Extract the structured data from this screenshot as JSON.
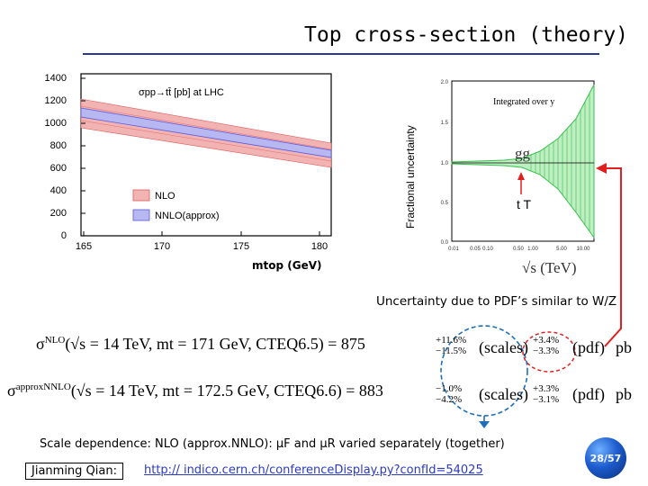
{
  "slide": {
    "title": "Top cross-section (theory)",
    "page_badge": "28/57",
    "uncertainty_note": "Uncertainty due to PDF’s similar to W/Z",
    "scale_note": "Scale dependence: NLO (approx.NNLO): μF and μR varied separately (together)",
    "author": "Jianming Qian:",
    "link": "http:// indico.cern.ch/conferenceDisplay.py?confId=54025"
  },
  "left_plot": {
    "legend_title": "σpp→tt̄ [pb] at LHC",
    "legend_nlo": "NLO",
    "legend_nnlo": "NNLO(approx)",
    "x_ticks": [
      "165",
      "170",
      "175",
      "180"
    ],
    "y_ticks": [
      "1400",
      "1200",
      "1000",
      "800",
      "600",
      "400",
      "200",
      "0"
    ],
    "xlabel": "mtop (GeV)"
  },
  "right_plot": {
    "ylabel": "Fractional uncertainty",
    "annotation": "Integrated over y",
    "label_gg": "gg",
    "label_tt": "t T",
    "y_ticks": [
      "2.0",
      "1.5",
      "1.0",
      "0.5",
      "0.0"
    ],
    "x_ticks": [
      "0.01",
      "0.05",
      "0.10",
      "0.50",
      "1.00",
      "5.00",
      "10.00"
    ],
    "xlabel": "√s (TeV)"
  },
  "equations": {
    "nlo": {
      "lhs": "σ",
      "lhs_sup": "NLO",
      "args": "(√s = 14 TeV, mt = 171 GeV, CTEQ6.5) = 875",
      "scale_up": "+11.6%",
      "scale_down": "−11.5%",
      "scale_label": "(scales)",
      "pdf_up": "+3.4%",
      "pdf_down": "−3.3%",
      "pdf_label": "(pdf)",
      "unit": "pb"
    },
    "nnlo": {
      "lhs": "σ",
      "lhs_sup": "approxNNLO",
      "args": "(√s = 14 TeV, mt = 172.5 GeV, CTEQ6.6) = 883",
      "scale_up": "−1.0%",
      "scale_down": "−4.2%",
      "scale_label": "(scales)",
      "pdf_up": "+3.3%",
      "pdf_down": "−3.1%",
      "pdf_label": "(pdf)",
      "unit": "pb"
    }
  },
  "colors": {
    "title_rule": "#2a3a8f",
    "nlo_band": "#e05a5a",
    "nnlo_band": "#5a5ae0",
    "gg_band": "#36c24a",
    "arrow_red": "#e02020",
    "arrow_blue": "#1f6fb8",
    "link": "#2b3bbf"
  }
}
